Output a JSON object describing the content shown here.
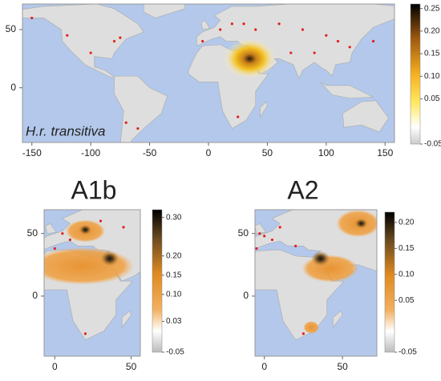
{
  "panels": [
    {
      "label": "H.r. transitiva",
      "xlim": [
        -158,
        158
      ],
      "ylim": [
        -47,
        72
      ],
      "xticks": [
        -150,
        -100,
        -50,
        0,
        50,
        100,
        150
      ],
      "yticks": [
        0,
        50
      ],
      "colorbar": {
        "lim": [
          -0.05,
          0.26
        ],
        "ticks": [
          0.25,
          {
            "value": 0.2,
            "label": "0.20"
          },
          0.15,
          {
            "value": 0.1,
            "label": "0.10"
          },
          0.05,
          -0.05
        ]
      }
    },
    {
      "title": "A1b",
      "xlim": [
        -7,
        56
      ],
      "ylim": [
        -48,
        69
      ],
      "xticks": [
        0,
        50
      ],
      "yticks": [
        0,
        50
      ],
      "colorbar": {
        "lim": [
          -0.05,
          0.32
        ],
        "ticks": [
          {
            "value": 0.3,
            "label": "0.30"
          },
          {
            "value": 0.2,
            "label": "0.20"
          },
          0.15,
          {
            "value": 0.1,
            "label": "0.10"
          },
          0.03,
          -0.05
        ]
      }
    },
    {
      "title": "A2",
      "xlim": [
        -6,
        72
      ],
      "ylim": [
        -48,
        69
      ],
      "xticks": [
        0,
        50
      ],
      "yticks": [
        0,
        50
      ],
      "colorbar": {
        "lim": [
          -0.05,
          0.22
        ],
        "ticks": [
          {
            "value": 0.2,
            "label": "0.20"
          },
          0.15,
          {
            "value": 0.1,
            "label": "0.10"
          },
          0.05,
          -0.05
        ]
      }
    }
  ]
}
